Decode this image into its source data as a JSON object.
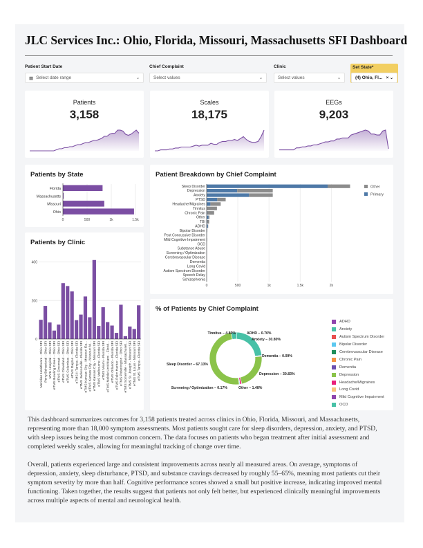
{
  "title": "JLC Services Inc.: Ohio, Florida, Missouri, Massachusetts SFI Dashboard",
  "filters": {
    "start_date": {
      "label": "Patient Start Date",
      "placeholder": "Select date range",
      "icon": "calendar-icon"
    },
    "chief_complaint": {
      "label": "Chief Complaint",
      "placeholder": "Select values"
    },
    "clinic": {
      "label": "Clinic",
      "placeholder": "Select values"
    },
    "set_state": {
      "label": "Set State*",
      "value": "(4) Ohio, Fl...",
      "accent": "#f2cf62"
    }
  },
  "kpis": [
    {
      "label": "Patients",
      "value": "3,158",
      "trend": [
        0,
        0,
        0,
        0,
        0,
        0,
        0,
        0,
        0,
        0,
        1,
        2,
        2,
        3,
        3,
        4,
        4,
        5,
        6,
        6,
        7,
        8,
        8,
        9,
        10,
        10,
        11,
        12,
        14,
        14,
        16,
        17,
        17,
        20,
        20,
        19,
        16,
        15,
        16,
        18,
        20,
        17
      ]
    },
    {
      "label": "Scales",
      "value": "18,175",
      "trend": [
        0,
        0,
        1,
        1,
        1,
        2,
        2,
        3,
        3,
        4,
        4,
        4,
        4,
        5,
        6,
        5,
        6,
        6,
        6,
        8,
        7,
        7,
        9,
        10,
        10,
        11,
        11,
        12,
        11,
        13,
        15,
        12,
        10,
        9,
        9,
        10,
        15,
        22
      ]
    },
    {
      "label": "EEGs",
      "value": "9,203",
      "trend": [
        1,
        1,
        1,
        1,
        1,
        1,
        3,
        3,
        4,
        4,
        5,
        5,
        6,
        6,
        7,
        8,
        9,
        9,
        10,
        10,
        12,
        12,
        13,
        13,
        13,
        16,
        17,
        18,
        19,
        20,
        21,
        20,
        17,
        17,
        16,
        16,
        20,
        21,
        2
      ]
    }
  ],
  "accent": "#7b4ea3",
  "chart_data": [
    {
      "type": "bar",
      "orientation": "horizontal",
      "title": "Patients by State",
      "categories": [
        "Florida",
        "Massachusetts",
        "Missouri",
        "Ohio"
      ],
      "values": [
        820,
        15,
        855,
        1470
      ],
      "xlim": [
        0,
        1500
      ],
      "xticks": [
        "0",
        "500",
        "1k",
        "1.5k"
      ],
      "grid": true
    },
    {
      "type": "bar",
      "title": "Patients by Clinic",
      "categories": [
        "Meridian Healthcare - Ohio SFI",
        "Perry Behavioral - Ohio SFI",
        "WVU Hospital - Ohio SFI",
        "eTMS Bowling Green - Ohio SFI",
        "eTMS Cincinnati - Ohio SFI",
        "eTMS Cleveland - Ohio SFI",
        "eTMS Columbus - Ohio SFI",
        "eTMS Dayton - Ohio SFI",
        "eTMS II Tampa - Florida SFI",
        "eTMS Jacksonville - Florida SFI",
        "eTMS Kansas City - Missouri Ea...",
        "eTMS Kansas City - Missouri M...",
        "eTMS Kansas City - Missouri SFI",
        "eTMS Melbourne - Florida SFI",
        "eTMS Miami - Florida SFI",
        "eTMS Mobile Unit Miami - Florid...",
        "eTMS Orlando - Florida SFI",
        "eTMS Palm Harbor - Florida SFI",
        "eTMS Pickerington - Ohio SFI",
        "eTMS Somerville - Massachuset...",
        "eTMS St. Joseph - Missouri SFI",
        "eTMS St. Louis - Missouri SFI",
        "eTMS Tampa - Florida SFI"
      ],
      "values": [
        100,
        172,
        86,
        44,
        75,
        290,
        275,
        247,
        98,
        127,
        221,
        113,
        410,
        68,
        165,
        88,
        70,
        32,
        178,
        15,
        65,
        52,
        175
      ],
      "ylim": [
        0,
        420
      ],
      "yticks": [
        "0",
        "200",
        "400"
      ],
      "grid": true
    },
    {
      "type": "bar",
      "orientation": "horizontal",
      "stacked": true,
      "title": "Patient Breakdown by Chief Complaint",
      "categories": [
        "Sleep Disorder",
        "Depression",
        "Anxiety",
        "PTSD",
        "Headache/Migraines",
        "Tinnitus",
        "Chronic Pain",
        "Other",
        "TBI",
        "ADHD",
        "Bipolar Disorder",
        "Post Concussive Disorder",
        "Mild Cognitive Impairment",
        "OCD",
        "Substance Abuse",
        "Screening / Optimization",
        "Cerebrovascular Disease",
        "Dementia",
        "Long Covid",
        "Autism Spectrum Disorder",
        "Speech Delay",
        "Schizophrenia"
      ],
      "series": [
        {
          "name": "Primary",
          "color": "#4e79a7",
          "values": [
            1940,
            490,
            680,
            170,
            60,
            0,
            10,
            30,
            10,
            20,
            5,
            5,
            3,
            2,
            2,
            2,
            1,
            1,
            1,
            1,
            1,
            1
          ]
        },
        {
          "name": "Other",
          "color": "#8c8c8c",
          "values": [
            360,
            570,
            380,
            135,
            165,
            165,
            110,
            15,
            30,
            5,
            5,
            0,
            5,
            1,
            1,
            1,
            1,
            0,
            0,
            0,
            0,
            0
          ]
        }
      ],
      "xlim": [
        0,
        2350
      ],
      "xticks": [
        "0",
        "500",
        "1k",
        "1.5k",
        "2k"
      ],
      "legend": "top-right",
      "grid": true
    },
    {
      "type": "pie",
      "donut": true,
      "title": "% of Patients by Chief Complaint",
      "slices": [
        {
          "label": "ADHD",
          "value": 0.7,
          "text": "ADHD – 0.70%",
          "color": "#8e44ad"
        },
        {
          "label": "Anxiety",
          "value": 30.8,
          "text": "Anxiety – 30.80%",
          "color": "#48c1a7"
        },
        {
          "label": "Dementia",
          "value": 0.09,
          "text": "Dementia – 0.09%",
          "color": "#6a4fb0"
        },
        {
          "label": "Depression",
          "value": 30.83,
          "text": "Depression – 30.83%",
          "color": "#8bc34a"
        },
        {
          "label": "Other",
          "value": 1.48,
          "text": "Other – 1.48%",
          "color": "#e91e7a"
        },
        {
          "label": "Screening / Optimization",
          "value": 0.17,
          "text": "Screening / Optimization – 0.17%",
          "color": "#5bc8f0"
        },
        {
          "label": "Sleep Disorder",
          "value": 67.13,
          "text": "Sleep Disorder – 67.13%",
          "color": "#8bc34a"
        },
        {
          "label": "Tinnitus",
          "value": 4.8,
          "text": "Tinnitus – 4.80%",
          "color": "#48c1a7"
        }
      ],
      "legend": [
        {
          "label": "ADHD",
          "color": "#8e44ad"
        },
        {
          "label": "Anxiety",
          "color": "#48c1a7"
        },
        {
          "label": "Autism Spectrum Disorder",
          "color": "#e8504f"
        },
        {
          "label": "Bipolar Disorder",
          "color": "#5bc8f0"
        },
        {
          "label": "Cerebrovascular Disease",
          "color": "#1e8e5a"
        },
        {
          "label": "Chronic Pain",
          "color": "#f39243"
        },
        {
          "label": "Dementia",
          "color": "#6a4fb0"
        },
        {
          "label": "Depression",
          "color": "#8bc34a"
        },
        {
          "label": "Headache/Migraines",
          "color": "#e91e7a"
        },
        {
          "label": "Long Covid",
          "color": "#f9c07a"
        },
        {
          "label": "Mild Cognitive Impairment",
          "color": "#8e44ad"
        },
        {
          "label": "OCD",
          "color": "#48c1a7"
        }
      ],
      "legend_placement": "right"
    }
  ],
  "summary": [
    "This dashboard summarizes outcomes for 3,158 patients treated across clinics in Ohio, Florida, Missouri, and Massachusetts, representing more than 18,000 symptom assessments. Most patients sought care for sleep disorders, depression, anxiety, and PTSD, with sleep issues being the most common concern. The data focuses on patients who began treatment after initial assessment and completed weekly scales, allowing for meaningful tracking of change over time.",
    "Overall, patients experienced large and consistent improvements across nearly all measured areas. On average, symptoms of depression, anxiety, sleep disturbance, PTSD, and substance cravings decreased by roughly 55–65%, meaning most patients cut their symptom severity by more than half. Cognitive performance scores showed a small but positive increase, indicating improved mental functioning. Taken together, the results suggest that patients not only felt better, but experienced clinically meaningful improvements across multiple aspects of mental and neurological health."
  ]
}
